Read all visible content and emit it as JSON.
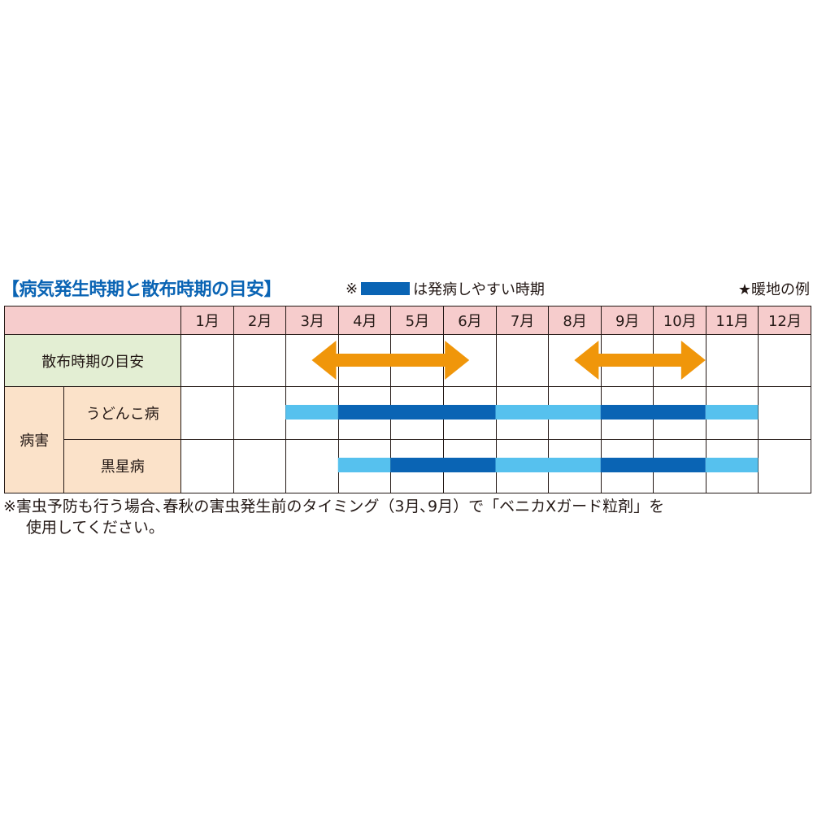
{
  "title": "【病気発生時期と散布時期の目安】",
  "legend": {
    "prefix": "※",
    "label": "は発病しやすい時期"
  },
  "note_right": "★暖地の例",
  "table": {
    "spray_label": "散布時期の目安",
    "group_label": "病害",
    "diseases": [
      "うどんこ病",
      "黒星病"
    ]
  },
  "footnote": {
    "line1": "※害虫予防も行う場合､春秋の害虫発生前のタイミング（3月､9月）で「ベニカXガード粒剤」を",
    "line2": "使用してください。"
  },
  "colors": {
    "header": "#f6cccc",
    "spray_row": "#e3eed3",
    "disease_rows": "#fbe2c9",
    "peak": "#0a64b4",
    "occurrence": "#56c1ee",
    "arrow": "#f0960a"
  },
  "chart_data": {
    "type": "table",
    "months": [
      "1月",
      "2月",
      "3月",
      "4月",
      "5月",
      "6月",
      "7月",
      "8月",
      "9月",
      "10月",
      "11月",
      "12月"
    ],
    "spray_periods": [
      {
        "start_month": 3.5,
        "end_month": 6.5
      },
      {
        "start_month": 8.5,
        "end_month": 11.0
      }
    ],
    "disease_periods": [
      {
        "disease": "うどんこ病",
        "segments": [
          {
            "from": "3月",
            "to": "3月",
            "level": "occurrence"
          },
          {
            "from": "4月",
            "to": "6月",
            "level": "peak"
          },
          {
            "from": "7月",
            "to": "8月",
            "level": "occurrence"
          },
          {
            "from": "9月",
            "to": "10月",
            "level": "peak"
          },
          {
            "from": "11月",
            "to": "11月",
            "level": "occurrence"
          }
        ]
      },
      {
        "disease": "黒星病",
        "segments": [
          {
            "from": "4月",
            "to": "4月",
            "level": "occurrence"
          },
          {
            "from": "5月",
            "to": "6月",
            "level": "peak"
          },
          {
            "from": "7月",
            "to": "8月",
            "level": "occurrence"
          },
          {
            "from": "9月",
            "to": "10月",
            "level": "peak"
          },
          {
            "from": "11月",
            "to": "11月",
            "level": "occurrence"
          }
        ]
      }
    ]
  }
}
